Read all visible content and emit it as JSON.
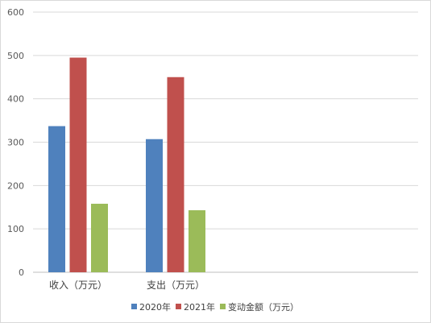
{
  "chart_data": {
    "type": "bar",
    "title": "",
    "xlabel": "",
    "ylabel": "",
    "categories": [
      "收入（万元）",
      "支出（万元）"
    ],
    "series": [
      {
        "name": "2020年",
        "values": [
          337,
          307
        ],
        "color": "#4f81bd"
      },
      {
        "name": "2021年",
        "values": [
          495,
          450
        ],
        "color": "#c0504d"
      },
      {
        "name": "变动金额（万元）",
        "values": [
          158,
          143
        ],
        "color": "#9bbb59"
      }
    ],
    "ylim": [
      0,
      600
    ],
    "yticks": [
      "0",
      "100",
      "200",
      "300",
      "400",
      "500",
      "600"
    ],
    "grid": true,
    "legend": "bottom"
  }
}
